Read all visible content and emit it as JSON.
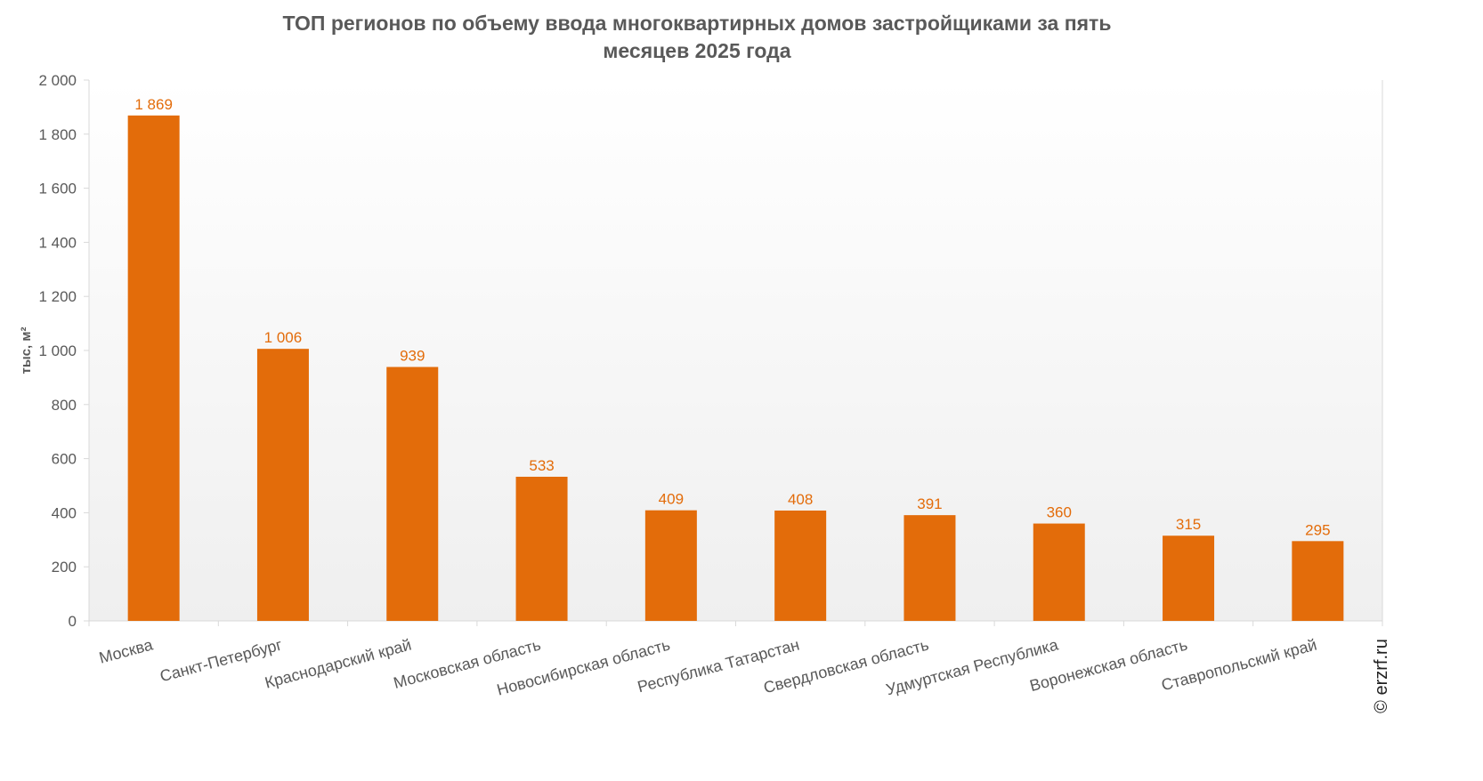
{
  "chart_data": {
    "type": "bar",
    "title": "ТОП регионов по объему ввода многоквартирных домов застройщиками за пять месяцев 2025 года",
    "title_lines": [
      "ТОП регионов по объему ввода многоквартирных домов застройщиками за пять",
      "месяцев 2025 года"
    ],
    "xlabel": "",
    "ylabel": "тыс, м²",
    "ylim": [
      0,
      2000
    ],
    "yticks": [
      0,
      200,
      400,
      600,
      800,
      1000,
      1200,
      1400,
      1600,
      1800,
      2000
    ],
    "ytick_labels": [
      "0",
      "200",
      "400",
      "600",
      "800",
      "1 000",
      "1 200",
      "1 400",
      "1 600",
      "1 800",
      "2 000"
    ],
    "categories": [
      "Москва",
      "Санкт-Петербург",
      "Краснодарский  край",
      "Московская  область",
      "Новосибирская  область",
      "Республика  Татарстан",
      "Свердловская  область",
      "Удмуртская  Республика",
      "Воронежская  область",
      "Ставропольский  край"
    ],
    "values": [
      1869,
      1006,
      939,
      533,
      409,
      408,
      391,
      360,
      315,
      295
    ],
    "data_labels": [
      "1 869",
      "1 006",
      "939",
      "533",
      "409",
      "408",
      "391",
      "360",
      "315",
      "295"
    ],
    "grid": false,
    "bar_color": "#e36c0a",
    "label_color": "#e36c0a"
  },
  "watermark": "© erzrf.ru"
}
